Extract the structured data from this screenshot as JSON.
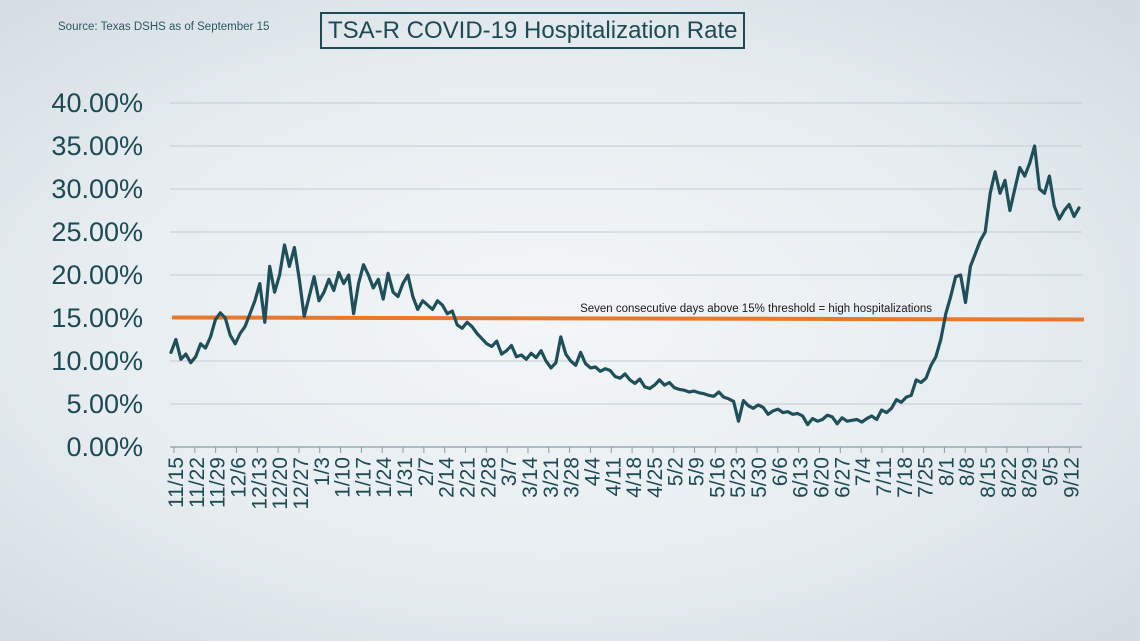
{
  "source": "Source: Texas DSHS as of September 15",
  "chart_data": {
    "type": "line",
    "title": "TSA-R COVID-19 Hospitalization Rate",
    "ylim": [
      0,
      40
    ],
    "yticks": [
      0,
      5,
      10,
      15,
      20,
      25,
      30,
      35,
      40
    ],
    "ytick_labels": [
      "0.00%",
      "5.00%",
      "10.00%",
      "15.00%",
      "20.00%",
      "25.00%",
      "30.00%",
      "35.00%",
      "40.00%"
    ],
    "grid": true,
    "x_tick_labels": [
      "11/15",
      "11/22",
      "11/29",
      "12/6",
      "12/13",
      "12/20",
      "12/27",
      "1/3",
      "1/10",
      "1/17",
      "1/24",
      "1/31",
      "2/7",
      "2/14",
      "2/21",
      "2/28",
      "3/7",
      "3/14",
      "3/21",
      "3/28",
      "4/4",
      "4/11",
      "4/18",
      "4/25",
      "5/2",
      "5/9",
      "5/16",
      "5/23",
      "5/30",
      "6/6",
      "6/13",
      "6/20",
      "6/27",
      "7/4",
      "7/11",
      "7/18",
      "7/25",
      "8/1",
      "8/8",
      "8/15",
      "8/22",
      "8/29",
      "9/5",
      "9/12"
    ],
    "threshold": {
      "value": 15,
      "label": "Seven consecutive days above 15% threshold = high hospitalizations",
      "color": "#e8782c"
    },
    "line_color": "#1f4f59",
    "series_values": [
      11.0,
      12.5,
      10.2,
      10.8,
      9.8,
      10.5,
      12.0,
      11.5,
      12.8,
      14.8,
      15.6,
      15.0,
      13.0,
      12.0,
      13.2,
      14.0,
      15.5,
      17.0,
      19.0,
      14.5,
      21.0,
      18.0,
      20.0,
      23.5,
      21.0,
      23.2,
      19.5,
      15.2,
      17.5,
      19.8,
      17.0,
      18.0,
      19.5,
      18.2,
      20.3,
      19.0,
      20.0,
      15.5,
      19.0,
      21.2,
      20.0,
      18.5,
      19.5,
      17.2,
      20.2,
      18.0,
      17.5,
      19.0,
      20.0,
      17.5,
      16.0,
      17.0,
      16.5,
      16.0,
      17.0,
      16.5,
      15.5,
      15.8,
      14.2,
      13.8,
      14.5,
      14.0,
      13.2,
      12.6,
      12.0,
      11.7,
      12.3,
      10.8,
      11.2,
      11.8,
      10.5,
      10.7,
      10.2,
      10.9,
      10.4,
      11.2,
      10.0,
      9.2,
      9.8,
      12.8,
      10.8,
      10.0,
      9.5,
      11.0,
      9.7,
      9.2,
      9.3,
      8.8,
      9.1,
      8.9,
      8.2,
      8.0,
      8.5,
      7.8,
      7.4,
      7.9,
      7.0,
      6.8,
      7.2,
      7.8,
      7.2,
      7.5,
      6.9,
      6.7,
      6.6,
      6.4,
      6.5,
      6.3,
      6.2,
      6.0,
      5.9,
      6.4,
      5.8,
      5.6,
      5.3,
      3.0,
      5.4,
      4.8,
      4.5,
      4.9,
      4.6,
      3.8,
      4.2,
      4.4,
      4.0,
      4.1,
      3.8,
      3.9,
      3.6,
      2.6,
      3.3,
      3.0,
      3.2,
      3.7,
      3.5,
      2.7,
      3.4,
      3.0,
      3.1,
      3.2,
      2.9,
      3.3,
      3.6,
      3.2,
      4.3,
      4.0,
      4.5,
      5.5,
      5.2,
      5.8,
      6.0,
      7.8,
      7.5,
      8.0,
      9.5,
      10.5,
      12.5,
      15.5,
      17.5,
      19.8,
      20.0,
      16.8,
      21.0,
      22.5,
      24.0,
      25.0,
      29.5,
      32.0,
      29.5,
      31.0,
      27.5,
      30.0,
      32.5,
      31.5,
      33.0,
      35.0,
      30.0,
      29.5,
      31.5,
      28.0,
      26.5,
      27.5,
      28.2,
      26.8,
      27.8
    ]
  }
}
